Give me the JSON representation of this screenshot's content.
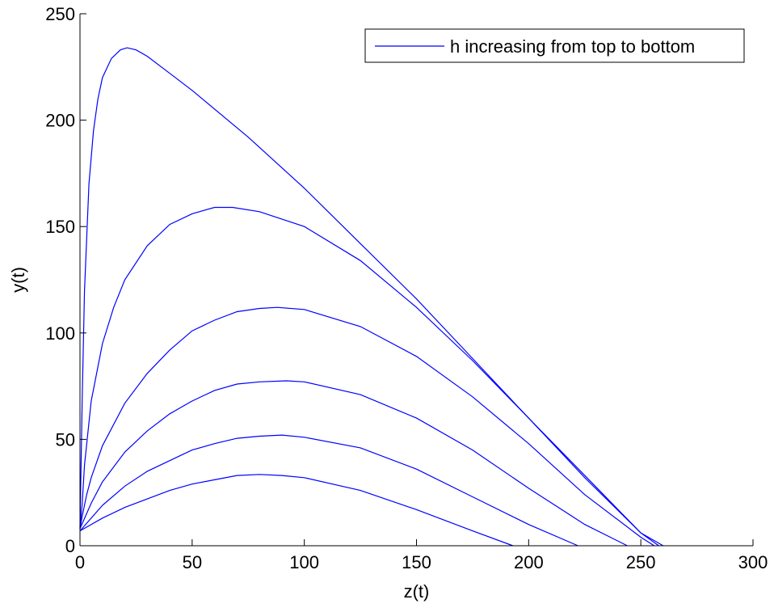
{
  "chart_data": {
    "type": "line",
    "title": "",
    "xlabel": "z(t)",
    "ylabel": "y(t)",
    "xlim": [
      0,
      300
    ],
    "ylim": [
      0,
      250
    ],
    "xticks": [
      0,
      50,
      100,
      150,
      200,
      250,
      300
    ],
    "yticks": [
      0,
      50,
      100,
      150,
      200,
      250
    ],
    "grid": false,
    "legend": {
      "position": "top-right",
      "entries": [
        "h increasing from top to bottom"
      ]
    },
    "line_color": "#0000ff",
    "series": [
      {
        "x": [
          0,
          1,
          2,
          4,
          6,
          8,
          10,
          14,
          18,
          21,
          25,
          30,
          40,
          50,
          75,
          100,
          125,
          150,
          175,
          200,
          225,
          250,
          260
        ],
        "y": [
          8,
          70,
          120,
          170,
          195,
          210,
          220,
          229,
          233,
          234,
          233,
          230,
          222,
          214,
          192,
          168,
          142,
          116,
          88,
          60,
          33,
          6,
          0
        ]
      },
      {
        "x": [
          0,
          1,
          2,
          5,
          10,
          15,
          20,
          30,
          40,
          50,
          60,
          68,
          80,
          100,
          125,
          150,
          175,
          200,
          225,
          250,
          258
        ],
        "y": [
          8,
          20,
          38,
          68,
          95,
          112,
          125,
          141,
          151,
          156,
          159,
          159,
          157,
          150,
          134,
          112,
          87,
          60,
          32,
          6,
          0
        ]
      },
      {
        "x": [
          0,
          1,
          3,
          5,
          10,
          20,
          30,
          40,
          50,
          60,
          70,
          80,
          88,
          100,
          125,
          150,
          175,
          200,
          225,
          250,
          256
        ],
        "y": [
          8,
          14,
          24,
          32,
          47,
          67,
          81,
          92,
          101,
          106,
          110,
          111.5,
          112,
          111,
          103,
          89,
          70,
          48,
          24,
          4,
          0
        ]
      },
      {
        "x": [
          0,
          5,
          10,
          20,
          30,
          40,
          50,
          60,
          70,
          80,
          92,
          100,
          125,
          150,
          175,
          200,
          225,
          244
        ],
        "y": [
          8,
          20,
          30,
          44,
          54,
          62,
          68,
          73,
          76,
          77,
          77.5,
          77,
          71,
          60,
          45,
          27,
          10,
          0
        ]
      },
      {
        "x": [
          0,
          10,
          20,
          30,
          40,
          50,
          60,
          70,
          80,
          90,
          100,
          125,
          150,
          175,
          200,
          222
        ],
        "y": [
          7,
          19,
          28,
          35,
          40,
          45,
          48,
          50.5,
          51.5,
          52,
          51,
          46,
          36,
          23,
          10,
          0
        ]
      },
      {
        "x": [
          0,
          10,
          20,
          30,
          40,
          50,
          60,
          70,
          80,
          90,
          100,
          125,
          150,
          175,
          193
        ],
        "y": [
          7,
          13,
          18,
          22,
          26,
          29,
          31,
          33,
          33.5,
          33,
          32,
          26,
          17,
          7,
          0
        ]
      }
    ]
  }
}
